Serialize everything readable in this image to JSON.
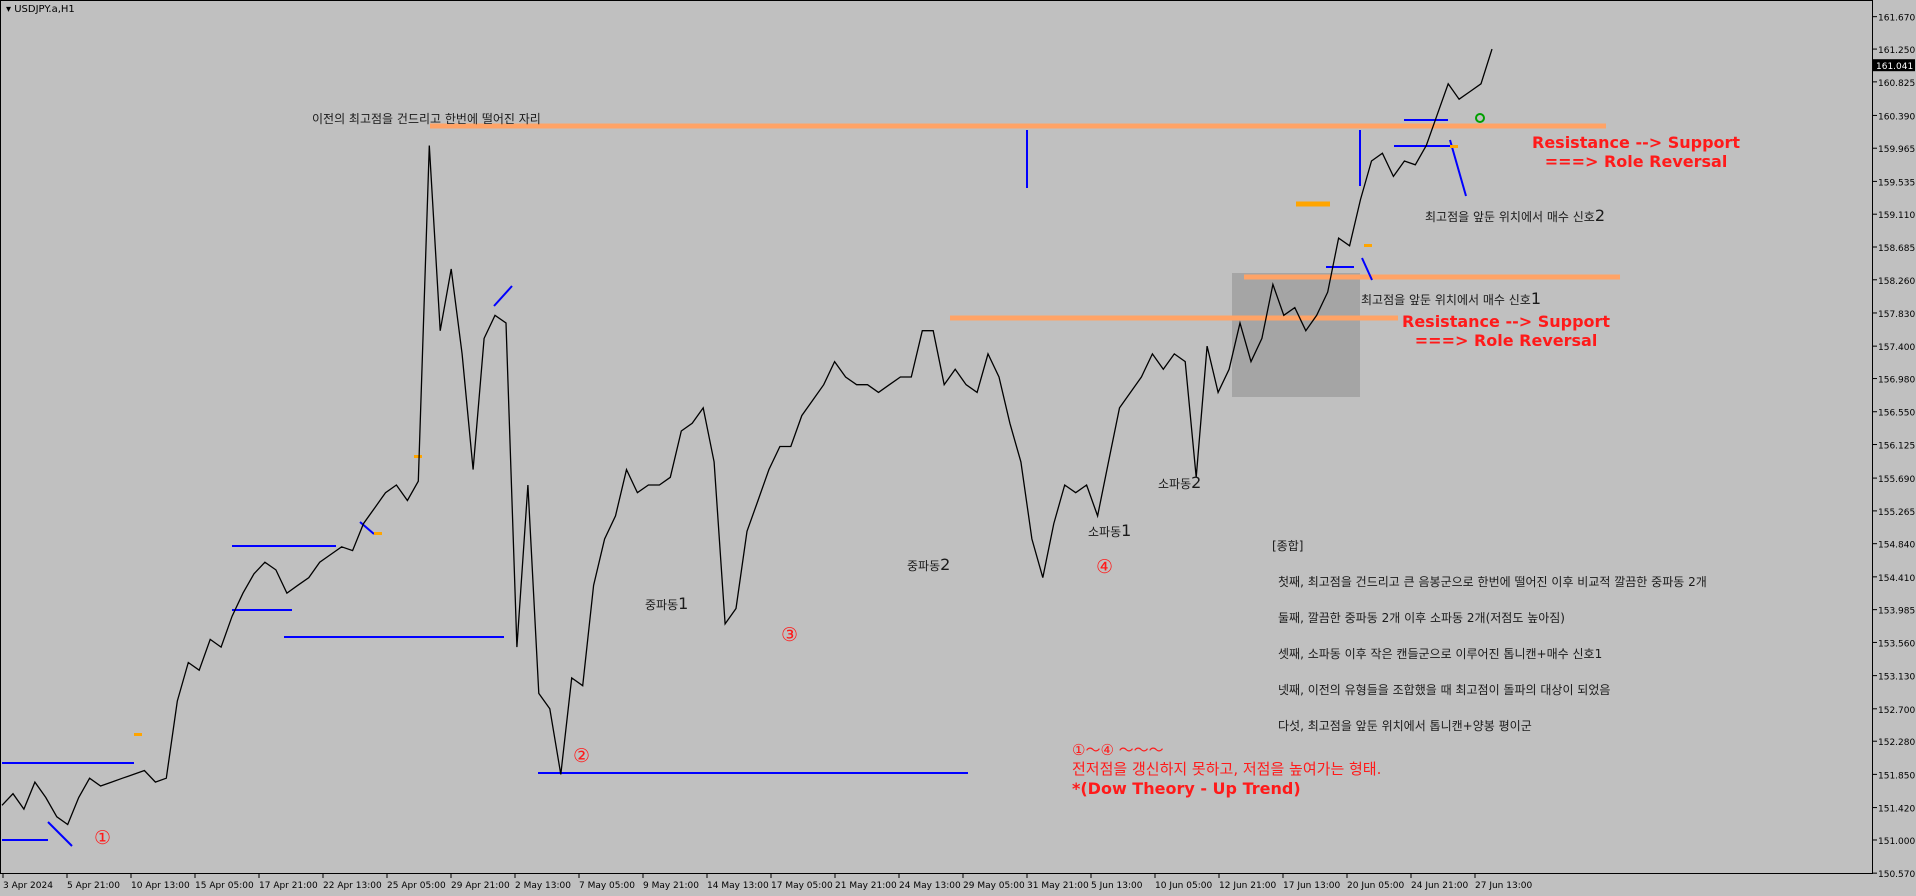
{
  "window": {
    "title": "USDJPY.a,H1"
  },
  "chart_data": {
    "type": "line",
    "symbol": "USDJPY.a",
    "timeframe": "H1",
    "ylim": [
      150.572,
      161.86
    ],
    "y_ticks": [
      "161.670",
      "161.250",
      "160.825",
      "160.390",
      "159.965",
      "159.535",
      "159.110",
      "158.685",
      "158.260",
      "157.830",
      "157.400",
      "156.980",
      "156.550",
      "156.125",
      "155.690",
      "155.265",
      "154.840",
      "154.410",
      "153.985",
      "153.560",
      "153.130",
      "152.700",
      "152.280",
      "151.850",
      "151.420",
      "151.000",
      "150.570"
    ],
    "current_price": "161.041",
    "x_ticks": [
      "3 Apr 2024",
      "5 Apr 21:00",
      "10 Apr 13:00",
      "15 Apr 05:00",
      "17 Apr 21:00",
      "22 Apr 13:00",
      "25 Apr 05:00",
      "29 Apr 21:00",
      "2 May 13:00",
      "7 May 05:00",
      "9 May 21:00",
      "14 May 13:00",
      "17 May 05:00",
      "21 May 21:00",
      "24 May 13:00",
      "29 May 05:00",
      "31 May 21:00",
      "5 Jun 13:00",
      "10 Jun 05:00",
      "12 Jun 21:00",
      "17 Jun 13:00",
      "20 Jun 05:00",
      "24 Jun 21:00",
      "27 Jun 13:00"
    ],
    "series": [
      {
        "values": [
          151.45,
          151.6,
          151.4,
          151.75,
          151.55,
          151.3,
          151.2,
          151.55,
          151.8,
          151.7,
          151.75,
          151.8,
          151.85,
          151.9,
          151.75,
          151.8,
          152.8,
          153.3,
          153.2,
          153.6,
          153.5,
          153.9,
          154.2,
          154.45,
          154.6,
          154.5,
          154.2,
          154.3,
          154.4,
          154.6,
          154.7,
          154.8,
          154.75,
          155.1,
          155.3,
          155.5,
          155.6,
          155.4,
          155.65,
          160.0,
          157.6,
          158.4,
          157.3,
          155.8,
          157.5,
          157.8,
          157.7,
          153.5,
          155.6,
          152.9,
          152.7,
          151.85,
          153.1,
          153.0,
          154.3,
          154.9,
          155.2,
          155.8,
          155.5,
          155.6,
          155.6,
          155.7,
          156.3,
          156.4,
          156.6,
          155.9,
          153.8,
          154.0,
          155.0,
          155.4,
          155.8,
          156.1,
          156.1,
          156.5,
          156.7,
          156.9,
          157.2,
          157.0,
          156.9,
          156.9,
          156.8,
          156.9,
          157.0,
          157.0,
          157.6,
          157.6,
          156.9,
          157.1,
          156.9,
          156.8,
          157.3,
          157.0,
          156.4,
          155.9,
          154.9,
          154.4,
          155.1,
          155.6,
          155.5,
          155.6,
          155.2,
          155.9,
          156.6,
          156.8,
          157.0,
          157.3,
          157.1,
          157.3,
          157.2,
          155.7,
          157.4,
          156.8,
          157.1,
          157.7,
          157.2,
          157.5,
          158.2,
          157.8,
          157.9,
          157.6,
          157.8,
          158.1,
          158.8,
          158.7,
          159.3,
          159.8,
          159.9,
          159.6,
          159.8,
          159.75,
          160.0,
          160.4,
          160.8,
          160.6,
          160.7,
          160.8,
          161.25
        ]
      }
    ]
  },
  "annotations": {
    "top_note": "이전의 최고점을 건드리고 한번에 떨어진 자리",
    "role_reversal_1": {
      "line1": "Resistance --> Support",
      "line2": "===> Role Reversal"
    },
    "role_reversal_2": {
      "line1": "Resistance --> Support",
      "line2": "===> Role Reversal"
    },
    "buy_signal_2": {
      "text": "최고점을 앞둔 위치에서 매수 신호",
      "num": "2"
    },
    "buy_signal_1": {
      "text": "최고점을 앞둔 위치에서 매수 신호",
      "num": "1"
    },
    "small_wave_2": {
      "text": "소파동",
      "num": "2"
    },
    "small_wave_1": {
      "text": "소파동",
      "num": "1"
    },
    "mid_wave_2": {
      "text": "중파동",
      "num": "2"
    },
    "mid_wave_1": {
      "text": "중파동",
      "num": "1"
    },
    "circle_1": "①",
    "circle_2": "②",
    "circle_3": "③",
    "circle_4": "④",
    "dow_line1": "①～④ ～～～",
    "dow_line2": "전저점을 갱신하지 못하고, 저점을 높여가는 형태.",
    "dow_line3": "*(Dow Theory - Up Trend)"
  },
  "summary": {
    "heading": "[종합]",
    "lines": [
      "첫째, 최고점을 건드리고 큰 음봉군으로 한번에 떨어진 이후 비교적 깔끔한 중파동 2개",
      "둘째, 깔끔한 중파동 2개 이후 소파동 2개(저점도 높아짐)",
      "셋째, 소파동 이후 작은 캔들군으로 이루어진 톱니캔+매수 신호1",
      "넷째, 이전의 유형들을 조합했을 때 최고점이 돌파의 대상이 되었음",
      "다섯, 최고점을 앞둔 위치에서 톱니캔+양봉 평이군"
    ]
  }
}
